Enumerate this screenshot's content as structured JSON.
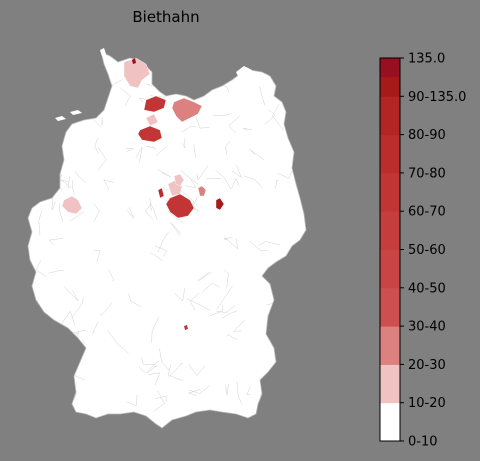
{
  "title": "Biethahn",
  "colors": {
    "background": "#808080",
    "land": "#ffffff",
    "borders": "#c8c8c8"
  },
  "legend": {
    "type": "colorbar",
    "placement": "right",
    "labels": [
      "0-10",
      "10-20",
      "20-30",
      "30-40",
      "40-50",
      "50-60",
      "60-70",
      "70-80",
      "80-90",
      "90-135.0",
      "135.0"
    ],
    "bins": [
      {
        "label": "0-10",
        "color": "#ffffff"
      },
      {
        "label": "10-20",
        "color": "#f0c2c2"
      },
      {
        "label": "20-30",
        "color": "#dd8080"
      },
      {
        "label": "30-40",
        "color": "#cd4f4f"
      },
      {
        "label": "40-50",
        "color": "#c94545"
      },
      {
        "label": "50-60",
        "color": "#c53d3d"
      },
      {
        "label": "60-70",
        "color": "#c13535"
      },
      {
        "label": "70-80",
        "color": "#bb2d2d"
      },
      {
        "label": "80-90",
        "color": "#b32424"
      },
      {
        "label": "90-135.0",
        "color": "#a71a1a"
      },
      {
        "label": "135.0",
        "color": "#990f22"
      }
    ]
  },
  "regions": [
    {
      "name": "",
      "bin": "10-20"
    },
    {
      "name": "",
      "bin": "20-30"
    },
    {
      "name": "",
      "bin": "60-70"
    },
    {
      "name": "",
      "bin": "60-70"
    },
    {
      "name": "",
      "bin": "10-20"
    },
    {
      "name": "",
      "bin": "60-70"
    },
    {
      "name": "",
      "bin": "10-20"
    },
    {
      "name": "",
      "bin": "10-20"
    },
    {
      "name": "",
      "bin": "70-80"
    },
    {
      "name": "",
      "bin": "20-30"
    },
    {
      "name": "",
      "bin": "90-135.0"
    },
    {
      "name": "",
      "bin": "10-20"
    }
  ]
}
